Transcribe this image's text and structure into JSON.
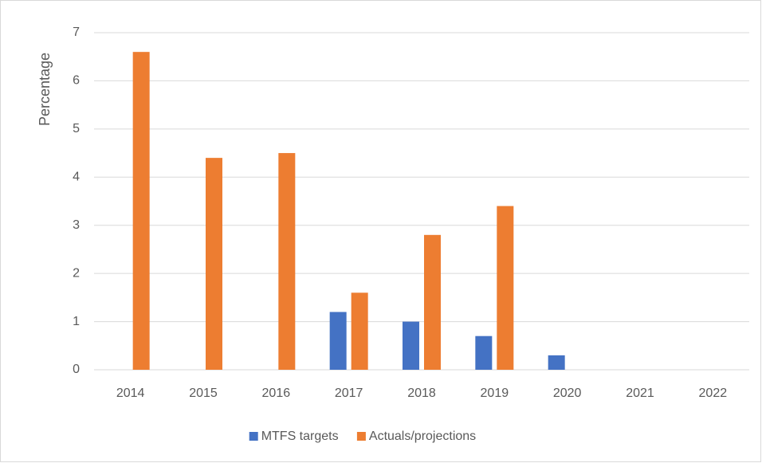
{
  "chart_data": {
    "type": "bar",
    "y_label": "Percentage",
    "categories": [
      "2014",
      "2015",
      "2016",
      "2017",
      "2018",
      "2019",
      "2020",
      "2021",
      "2022"
    ],
    "series": [
      {
        "name": "MTFS targets",
        "color": "#4472c4",
        "values": [
          null,
          null,
          null,
          1.2,
          1.0,
          0.7,
          0.3,
          null,
          null
        ]
      },
      {
        "name": "Actuals/projections",
        "color": "#ed7d31",
        "values": [
          6.6,
          4.4,
          4.5,
          1.6,
          2.8,
          3.4,
          null,
          null,
          null
        ]
      }
    ],
    "ylim": [
      0,
      7
    ],
    "yticks": [
      0,
      1,
      2,
      3,
      4,
      5,
      6,
      7
    ],
    "grid": true,
    "legend": "bottom"
  }
}
